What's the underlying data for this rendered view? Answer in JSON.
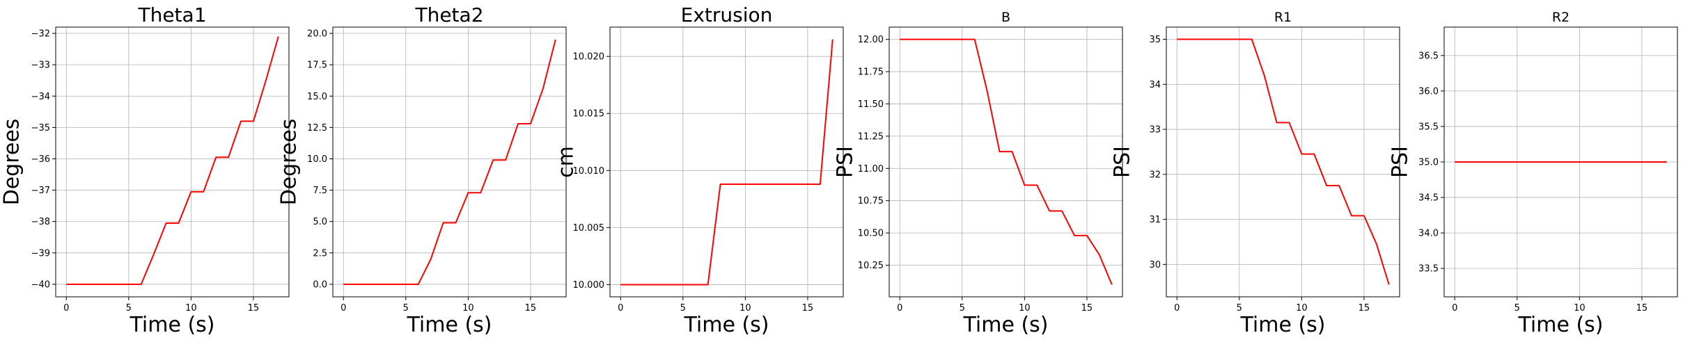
{
  "chart_data": [
    {
      "type": "line",
      "title": "Theta1",
      "xlabel": "Time (s)",
      "ylabel": "Degrees",
      "xlim": [
        -0.85,
        17.85
      ],
      "ylim": [
        -40.4,
        -31.8
      ],
      "xticks": [
        0,
        5,
        10,
        15
      ],
      "xtick_labels": [
        "0",
        "5",
        "10",
        "15"
      ],
      "yticks": [
        -40,
        -39,
        -38,
        -37,
        -36,
        -35,
        -34,
        -33,
        -32
      ],
      "ytick_labels": [
        "−40",
        "−39",
        "−38",
        "−37",
        "−36",
        "−35",
        "−34",
        "−33",
        "−32"
      ],
      "grid": true,
      "series": [
        {
          "color": "#ff0000",
          "x": [
            0,
            1,
            2,
            3,
            4,
            5,
            6,
            7,
            8,
            9,
            10,
            11,
            12,
            13,
            14,
            15,
            16,
            17
          ],
          "y": [
            -40,
            -40,
            -40,
            -40,
            -40,
            -40,
            -40,
            -39.05,
            -38.05,
            -38.05,
            -37.05,
            -37.05,
            -35.95,
            -35.95,
            -34.8,
            -34.8,
            -33.5,
            -32.1
          ]
        }
      ]
    },
    {
      "type": "line",
      "title": "Theta2",
      "xlabel": "Time (s)",
      "ylabel": "Degrees",
      "xlim": [
        -0.85,
        17.85
      ],
      "ylim": [
        -1.0,
        20.5
      ],
      "xticks": [
        0,
        5,
        10,
        15
      ],
      "xtick_labels": [
        "0",
        "5",
        "10",
        "15"
      ],
      "yticks": [
        0,
        2.5,
        5,
        7.5,
        10,
        12.5,
        15,
        17.5,
        20
      ],
      "ytick_labels": [
        "0.0",
        "2.5",
        "5.0",
        "7.5",
        "10.0",
        "12.5",
        "15.0",
        "17.5",
        "20.0"
      ],
      "grid": true,
      "series": [
        {
          "color": "#ff0000",
          "x": [
            0,
            1,
            2,
            3,
            4,
            5,
            6,
            7,
            8,
            9,
            10,
            11,
            12,
            13,
            14,
            15,
            16,
            17
          ],
          "y": [
            0,
            0,
            0,
            0,
            0,
            0,
            0,
            2.0,
            4.9,
            4.9,
            7.3,
            7.3,
            9.9,
            9.9,
            12.8,
            12.8,
            15.6,
            19.5
          ]
        }
      ]
    },
    {
      "type": "line",
      "title": "Extrusion",
      "xlabel": "Time (s)",
      "ylabel": "cm",
      "xlim": [
        -0.85,
        17.85
      ],
      "ylim": [
        9.99893,
        10.02257
      ],
      "xticks": [
        0,
        5,
        10,
        15
      ],
      "xtick_labels": [
        "0",
        "5",
        "10",
        "15"
      ],
      "yticks": [
        10.0,
        10.005,
        10.01,
        10.015,
        10.02
      ],
      "ytick_labels": [
        "10.000",
        "10.005",
        "10.010",
        "10.015",
        "10.020"
      ],
      "grid": true,
      "series": [
        {
          "color": "#ff0000",
          "x": [
            0,
            1,
            2,
            3,
            4,
            5,
            6,
            7,
            8,
            9,
            10,
            11,
            12,
            13,
            14,
            15,
            16,
            17
          ],
          "y": [
            10.0,
            10.0,
            10.0,
            10.0,
            10.0,
            10.0,
            10.0,
            10.0,
            10.0088,
            10.0088,
            10.0088,
            10.0088,
            10.0088,
            10.0088,
            10.0088,
            10.0088,
            10.0088,
            10.0215
          ]
        }
      ]
    },
    {
      "type": "line",
      "title": "B",
      "xlabel": "Time (s)",
      "ylabel": "PSI",
      "xlim": [
        -0.85,
        17.85
      ],
      "ylim": [
        10.005,
        12.095
      ],
      "xticks": [
        0,
        5,
        10,
        15
      ],
      "xtick_labels": [
        "0",
        "5",
        "10",
        "15"
      ],
      "yticks": [
        10.25,
        10.5,
        10.75,
        11.0,
        11.25,
        11.5,
        11.75,
        12.0
      ],
      "ytick_labels": [
        "10.25",
        "10.50",
        "10.75",
        "11.00",
        "11.25",
        "11.50",
        "11.75",
        "12.00"
      ],
      "grid": true,
      "series": [
        {
          "color": "#ff0000",
          "x": [
            0,
            1,
            2,
            3,
            4,
            5,
            6,
            7,
            8,
            9,
            10,
            11,
            12,
            13,
            14,
            15,
            16,
            17
          ],
          "y": [
            12,
            12,
            12,
            12,
            12,
            12,
            12,
            11.6,
            11.13,
            11.13,
            10.87,
            10.87,
            10.67,
            10.67,
            10.48,
            10.48,
            10.33,
            10.1
          ]
        }
      ]
    },
    {
      "type": "line",
      "title": "R1",
      "xlabel": "Time (s)",
      "ylabel": "PSI",
      "xlim": [
        -0.85,
        17.85
      ],
      "ylim": [
        29.28,
        35.27
      ],
      "xticks": [
        0,
        5,
        10,
        15
      ],
      "xtick_labels": [
        "0",
        "5",
        "10",
        "15"
      ],
      "yticks": [
        30,
        31,
        32,
        33,
        34,
        35
      ],
      "ytick_labels": [
        "30",
        "31",
        "32",
        "33",
        "34",
        "35"
      ],
      "grid": true,
      "series": [
        {
          "color": "#ff0000",
          "x": [
            0,
            1,
            2,
            3,
            4,
            5,
            6,
            7,
            8,
            9,
            10,
            11,
            12,
            13,
            14,
            15,
            16,
            17
          ],
          "y": [
            35,
            35,
            35,
            35,
            35,
            35,
            35,
            34.2,
            33.15,
            33.15,
            32.45,
            32.45,
            31.75,
            31.75,
            31.08,
            31.08,
            30.45,
            29.55
          ]
        }
      ]
    },
    {
      "type": "line",
      "title": "R2",
      "xlabel": "Time (s)",
      "ylabel": "PSI",
      "xlim": [
        -0.85,
        17.85
      ],
      "ylim": [
        33.1,
        36.9
      ],
      "xticks": [
        0,
        5,
        10,
        15
      ],
      "xtick_labels": [
        "0",
        "5",
        "10",
        "15"
      ],
      "yticks": [
        33.5,
        34.0,
        34.5,
        35.0,
        35.5,
        36.0,
        36.5
      ],
      "ytick_labels": [
        "33.5",
        "34.0",
        "34.5",
        "35.0",
        "35.5",
        "36.0",
        "36.5"
      ],
      "grid": true,
      "series": [
        {
          "color": "#ff0000",
          "x": [
            0,
            1,
            2,
            3,
            4,
            5,
            6,
            7,
            8,
            9,
            10,
            11,
            12,
            13,
            14,
            15,
            16,
            17
          ],
          "y": [
            35,
            35,
            35,
            35,
            35,
            35,
            35,
            35,
            35,
            35,
            35,
            35,
            35,
            35,
            35,
            35,
            35,
            35
          ]
        }
      ]
    }
  ]
}
